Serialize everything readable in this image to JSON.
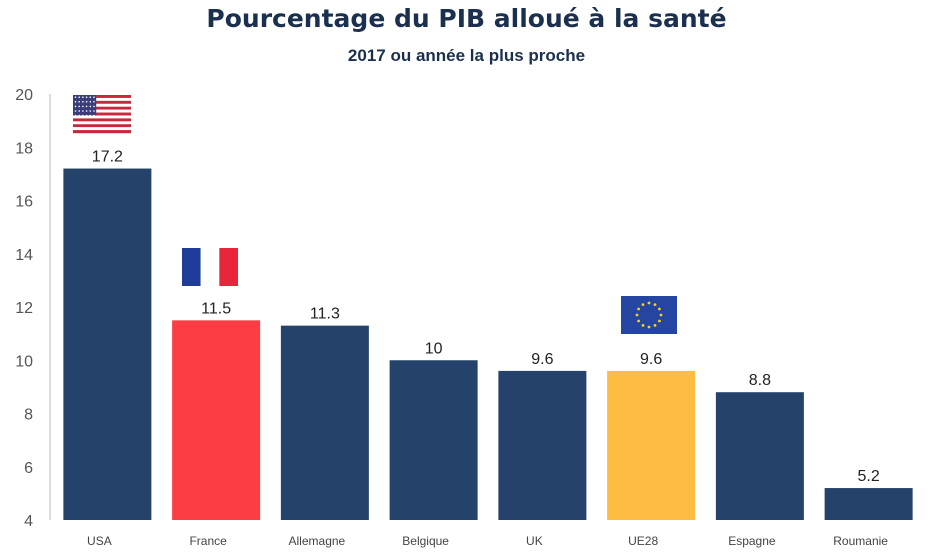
{
  "chart_data": {
    "type": "bar",
    "title": "Pourcentage du PIB alloué à la santé",
    "subtitle": "2017 ou année la plus proche",
    "categories": [
      "USA",
      "France",
      "Allemagne",
      "Belgique",
      "UK",
      "UE28",
      "Espagne",
      "Roumanie"
    ],
    "values": [
      17.2,
      11.5,
      11.3,
      10,
      9.6,
      9.6,
      8.8,
      5.2
    ],
    "data_labels": [
      "17.2",
      "11.5",
      "11.3",
      "10",
      "9.6",
      "9.6",
      "8.8",
      "5.2"
    ],
    "bar_colors": [
      "#25436a",
      "#fc3d44",
      "#25436a",
      "#25436a",
      "#25436a",
      "#fcbd42",
      "#25436a",
      "#25436a"
    ],
    "flags": [
      {
        "category": "USA",
        "icon": "usa-flag-icon"
      },
      {
        "category": "France",
        "icon": "france-flag-icon"
      },
      {
        "category": "UE28",
        "icon": "eu-flag-icon"
      }
    ],
    "ylim": [
      4,
      20
    ],
    "yticks": [
      4,
      6,
      8,
      10,
      12,
      14,
      16,
      18,
      20
    ],
    "xlabel": "",
    "ylabel": "",
    "grid": false,
    "legend": "none"
  }
}
